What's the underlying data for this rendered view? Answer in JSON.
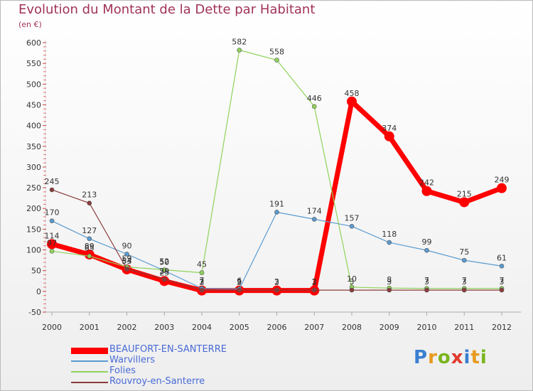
{
  "header": {
    "title": "Evolution du Montant de la Dette par Habitant",
    "subtitle": "(en €)"
  },
  "logo": {
    "text": "Proxiti",
    "colors": [
      "#3a7fd0",
      "#e89a1e",
      "#7ab51d",
      "#e2392e",
      "#3a7fd0",
      "#e89a1e",
      "#7ab51d"
    ]
  },
  "chart_data": {
    "type": "line",
    "x": [
      "2000",
      "2001",
      "2002",
      "2003",
      "2004",
      "2005",
      "2006",
      "2007",
      "2008",
      "2009",
      "2010",
      "2011",
      "2012"
    ],
    "ylim": [
      -50,
      600
    ],
    "yticks": [
      -50,
      0,
      50,
      100,
      150,
      200,
      250,
      300,
      350,
      400,
      450,
      500,
      550,
      600
    ],
    "grid": false,
    "legend_position": "bottom-left",
    "series": [
      {
        "name": "BEAUFORT-EN-SANTERRE",
        "color": "#ff0000",
        "highlight": true,
        "values": [
          114,
          89,
          53,
          25,
          2,
          2,
          2,
          2,
          458,
          374,
          242,
          215,
          249
        ]
      },
      {
        "name": "Warvillers",
        "color": "#5b9bd0",
        "values": [
          170,
          127,
          90,
          50,
          7,
          6,
          191,
          174,
          157,
          118,
          99,
          75,
          61
        ]
      },
      {
        "name": "Folies",
        "color": "#8fd35a",
        "values": [
          97,
          85,
          59,
          52,
          45,
          582,
          558,
          446,
          10,
          8,
          7,
          7,
          7
        ]
      },
      {
        "name": "Rouvroy-en-Santerre",
        "color": "#8b3a3a",
        "values": [
          245,
          213,
          54,
          29,
          3,
          3,
          3,
          3,
          3,
          3,
          3,
          3,
          3
        ]
      }
    ]
  }
}
